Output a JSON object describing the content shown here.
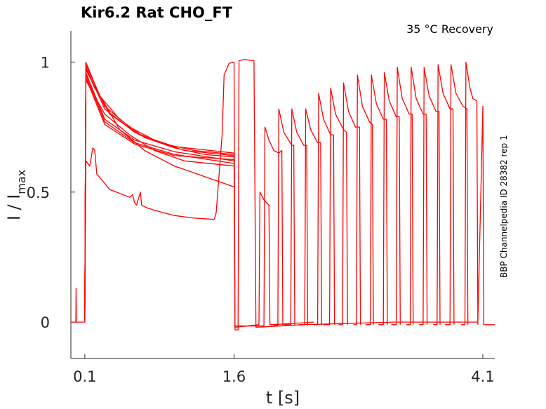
{
  "chart_data": {
    "type": "line",
    "title": "Kir6.2  Rat  CHO_FT",
    "annotation": "35 °C  Recovery",
    "side_label": "BBP Channelpedia ID 28382 rep 1",
    "xlabel": "t [s]",
    "ylabel_main": "I / I",
    "ylabel_sub": "max",
    "xlim": [
      -0.04,
      4.22
    ],
    "ylim": [
      -0.14,
      1.12
    ],
    "x_ticks": [
      {
        "value": 0.1,
        "label": "0.1"
      },
      {
        "value": 1.6,
        "label": "1.6"
      },
      {
        "value": 4.1,
        "label": "4.1"
      }
    ],
    "y_ticks": [
      {
        "value": 0,
        "label": "0"
      },
      {
        "value": 0.5,
        "label": "0.5"
      },
      {
        "value": 1,
        "label": "1"
      }
    ],
    "grid": false,
    "color": "#ff0000",
    "series": [
      {
        "values": [
          [
            -0.04,
            0
          ],
          [
            0.01,
            0
          ],
          [
            0.012,
            0.13
          ],
          [
            0.015,
            0
          ],
          [
            0.1,
            0
          ],
          [
            0.11,
            1.0
          ],
          [
            0.25,
            0.87
          ],
          [
            0.45,
            0.78
          ],
          [
            0.7,
            0.71
          ],
          [
            1.0,
            0.67
          ],
          [
            1.3,
            0.645
          ],
          [
            1.6,
            0.635
          ],
          [
            1.61,
            -0.02
          ],
          [
            1.85,
            -0.01
          ],
          [
            1.86,
            0.5
          ],
          [
            1.9,
            0.47
          ],
          [
            1.95,
            0.45
          ],
          [
            1.96,
            -0.01
          ],
          [
            2.2,
            -0.005
          ],
          [
            2.4,
            0.0
          ]
        ]
      },
      {
        "values": [
          [
            0.1,
            0
          ],
          [
            0.11,
            0.99
          ],
          [
            0.3,
            0.83
          ],
          [
            0.55,
            0.75
          ],
          [
            0.8,
            0.7
          ],
          [
            1.1,
            0.66
          ],
          [
            1.6,
            0.64
          ]
        ]
      },
      {
        "values": [
          [
            0.1,
            0
          ],
          [
            0.11,
            0.98
          ],
          [
            0.3,
            0.82
          ],
          [
            0.6,
            0.73
          ],
          [
            0.9,
            0.685
          ],
          [
            1.2,
            0.66
          ],
          [
            1.6,
            0.645
          ]
        ]
      },
      {
        "values": [
          [
            0.1,
            0
          ],
          [
            0.11,
            0.97
          ],
          [
            0.35,
            0.8
          ],
          [
            0.65,
            0.72
          ],
          [
            1.0,
            0.675
          ],
          [
            1.6,
            0.65
          ]
        ]
      },
      {
        "values": [
          [
            0.1,
            0
          ],
          [
            0.11,
            0.96
          ],
          [
            0.3,
            0.78
          ],
          [
            0.6,
            0.7
          ],
          [
            1.0,
            0.655
          ],
          [
            1.6,
            0.62
          ]
        ]
      },
      {
        "values": [
          [
            0.1,
            0
          ],
          [
            0.11,
            0.95
          ],
          [
            0.3,
            0.77
          ],
          [
            0.6,
            0.69
          ],
          [
            1.0,
            0.645
          ],
          [
            1.6,
            0.61
          ]
        ]
      },
      {
        "values": [
          [
            0.1,
            0
          ],
          [
            0.11,
            0.94
          ],
          [
            0.3,
            0.76
          ],
          [
            0.6,
            0.685
          ],
          [
            1.0,
            0.64
          ],
          [
            1.6,
            0.625
          ]
        ]
      },
      {
        "values": [
          [
            0.1,
            0
          ],
          [
            0.11,
            0.93
          ],
          [
            0.3,
            0.8
          ],
          [
            0.55,
            0.72
          ],
          [
            0.8,
            0.66
          ],
          [
            1.1,
            0.62
          ],
          [
            1.6,
            0.6
          ]
        ]
      },
      {
        "values": [
          [
            0.1,
            0
          ],
          [
            0.11,
            0.98
          ],
          [
            0.2,
            0.9
          ],
          [
            0.3,
            0.84
          ],
          [
            0.45,
            0.74
          ],
          [
            0.7,
            0.66
          ],
          [
            1.0,
            0.6
          ],
          [
            1.6,
            0.52
          ]
        ]
      },
      {
        "values": [
          [
            0.1,
            0
          ],
          [
            0.11,
            0.62
          ],
          [
            0.15,
            0.6
          ],
          [
            0.18,
            0.67
          ],
          [
            0.2,
            0.66
          ],
          [
            0.22,
            0.57
          ],
          [
            0.35,
            0.51
          ],
          [
            0.55,
            0.48
          ],
          [
            0.58,
            0.49
          ],
          [
            0.6,
            0.46
          ],
          [
            0.62,
            0.45
          ],
          [
            0.66,
            0.5
          ],
          [
            0.67,
            0.45
          ],
          [
            0.72,
            0.44
          ],
          [
            0.8,
            0.43
          ],
          [
            1.0,
            0.41
          ],
          [
            1.2,
            0.4
          ],
          [
            1.4,
            0.395
          ],
          [
            1.42,
            0.42
          ],
          [
            1.48,
            0.72
          ],
          [
            1.5,
            0.95
          ],
          [
            1.55,
            0.995
          ],
          [
            1.6,
            1.0
          ],
          [
            1.61,
            -0.03
          ],
          [
            1.64,
            -0.03
          ],
          [
            1.65,
            1.005
          ],
          [
            1.7,
            1.01
          ],
          [
            1.8,
            1.005
          ],
          [
            1.82,
            -0.02
          ],
          [
            2.3,
            -0.01
          ],
          [
            3.2,
            0.0
          ],
          [
            4.05,
            0.0
          ],
          [
            4.1,
            0.83
          ],
          [
            4.11,
            -0.01
          ],
          [
            4.22,
            -0.01
          ]
        ]
      },
      {
        "values": [
          [
            1.6,
            -0.015
          ],
          [
            1.9,
            -0.015
          ],
          [
            1.91,
            0.75
          ],
          [
            1.95,
            0.7
          ],
          [
            2.0,
            0.66
          ],
          [
            2.05,
            0.65
          ],
          [
            2.08,
            0.66
          ],
          [
            2.09,
            -0.012
          ]
        ]
      },
      {
        "values": [
          [
            2.0,
            -0.012
          ],
          [
            2.04,
            -0.012
          ],
          [
            2.05,
            0.82
          ],
          [
            2.1,
            0.73
          ],
          [
            2.18,
            0.68
          ],
          [
            2.2,
            0.68
          ],
          [
            2.21,
            -0.01
          ]
        ]
      },
      {
        "values": [
          [
            2.1,
            -0.01
          ],
          [
            2.17,
            -0.01
          ],
          [
            2.18,
            0.82
          ],
          [
            2.23,
            0.73
          ],
          [
            2.3,
            0.68
          ],
          [
            2.33,
            0.68
          ],
          [
            2.34,
            -0.01
          ]
        ]
      },
      {
        "values": [
          [
            2.25,
            -0.01
          ],
          [
            2.31,
            -0.01
          ],
          [
            2.32,
            0.82
          ],
          [
            2.37,
            0.74
          ],
          [
            2.44,
            0.69
          ],
          [
            2.47,
            0.69
          ],
          [
            2.48,
            -0.01
          ]
        ]
      },
      {
        "values": [
          [
            2.4,
            -0.01
          ],
          [
            2.44,
            -0.01
          ],
          [
            2.45,
            0.88
          ],
          [
            2.5,
            0.78
          ],
          [
            2.57,
            0.72
          ],
          [
            2.6,
            0.72
          ],
          [
            2.61,
            -0.01
          ]
        ]
      },
      {
        "values": [
          [
            2.5,
            -0.01
          ],
          [
            2.56,
            -0.01
          ],
          [
            2.57,
            0.9
          ],
          [
            2.62,
            0.8
          ],
          [
            2.7,
            0.74
          ],
          [
            2.73,
            0.73
          ],
          [
            2.74,
            -0.01
          ]
        ]
      },
      {
        "values": [
          [
            2.65,
            -0.01
          ],
          [
            2.69,
            -0.01
          ],
          [
            2.7,
            0.92
          ],
          [
            2.75,
            0.81
          ],
          [
            2.82,
            0.75
          ],
          [
            2.86,
            0.75
          ],
          [
            2.87,
            -0.01
          ]
        ]
      },
      {
        "values": [
          [
            2.8,
            -0.01
          ],
          [
            2.83,
            -0.01
          ],
          [
            2.84,
            0.95
          ],
          [
            2.89,
            0.83
          ],
          [
            2.96,
            0.77
          ],
          [
            2.99,
            0.76
          ],
          [
            3.0,
            -0.01
          ]
        ]
      },
      {
        "values": [
          [
            2.92,
            -0.01
          ],
          [
            2.97,
            -0.01
          ],
          [
            2.98,
            0.95
          ],
          [
            3.03,
            0.84
          ],
          [
            3.1,
            0.78
          ],
          [
            3.13,
            0.78
          ],
          [
            3.14,
            -0.01
          ]
        ]
      },
      {
        "values": [
          [
            3.05,
            -0.01
          ],
          [
            3.1,
            -0.01
          ],
          [
            3.11,
            0.96
          ],
          [
            3.16,
            0.85
          ],
          [
            3.23,
            0.79
          ],
          [
            3.26,
            0.79
          ],
          [
            3.27,
            -0.01
          ]
        ]
      },
      {
        "values": [
          [
            3.18,
            -0.01
          ],
          [
            3.23,
            -0.01
          ],
          [
            3.24,
            0.98
          ],
          [
            3.29,
            0.86
          ],
          [
            3.36,
            0.8
          ],
          [
            3.39,
            0.8
          ],
          [
            3.4,
            -0.01
          ]
        ]
      },
      {
        "values": [
          [
            3.33,
            -0.01
          ],
          [
            3.37,
            -0.01
          ],
          [
            3.38,
            0.98
          ],
          [
            3.43,
            0.86
          ],
          [
            3.5,
            0.8
          ],
          [
            3.53,
            0.8
          ],
          [
            3.54,
            -0.01
          ]
        ]
      },
      {
        "values": [
          [
            3.46,
            -0.01
          ],
          [
            3.5,
            -0.01
          ],
          [
            3.51,
            0.98
          ],
          [
            3.56,
            0.87
          ],
          [
            3.63,
            0.81
          ],
          [
            3.66,
            0.81
          ],
          [
            3.67,
            -0.01
          ]
        ]
      },
      {
        "values": [
          [
            3.6,
            -0.01
          ],
          [
            3.64,
            -0.01
          ],
          [
            3.65,
            0.99
          ],
          [
            3.7,
            0.88
          ],
          [
            3.77,
            0.82
          ],
          [
            3.8,
            0.82
          ],
          [
            3.81,
            -0.01
          ]
        ]
      },
      {
        "values": [
          [
            3.72,
            -0.01
          ],
          [
            3.77,
            -0.01
          ],
          [
            3.78,
            0.99
          ],
          [
            3.83,
            0.88
          ],
          [
            3.9,
            0.83
          ],
          [
            3.94,
            0.82
          ],
          [
            3.95,
            -0.01
          ]
        ]
      },
      {
        "values": [
          [
            3.88,
            -0.01
          ],
          [
            3.92,
            -0.01
          ],
          [
            3.93,
            1.0
          ],
          [
            3.97,
            0.9
          ],
          [
            4.0,
            0.86
          ],
          [
            4.04,
            0.85
          ],
          [
            4.05,
            -0.01
          ]
        ]
      }
    ]
  }
}
